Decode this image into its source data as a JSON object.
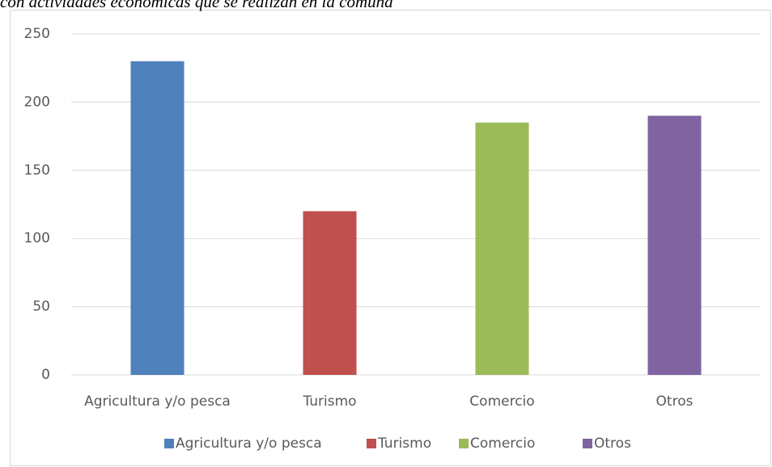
{
  "chart_data": {
    "type": "bar",
    "title": "con actividades económicas que se realizan en la comuna",
    "categories": [
      "Agricultura y/o pesca",
      "Turismo",
      "Comercio",
      "Otros"
    ],
    "values": [
      230,
      120,
      185,
      190
    ],
    "colors": [
      "#4f81bd",
      "#c0504d",
      "#9bbb59",
      "#8064a2"
    ],
    "ylim": [
      0,
      250
    ],
    "yticks": [
      0,
      50,
      100,
      150,
      200,
      250
    ],
    "grid": true,
    "legend": "bottom"
  }
}
